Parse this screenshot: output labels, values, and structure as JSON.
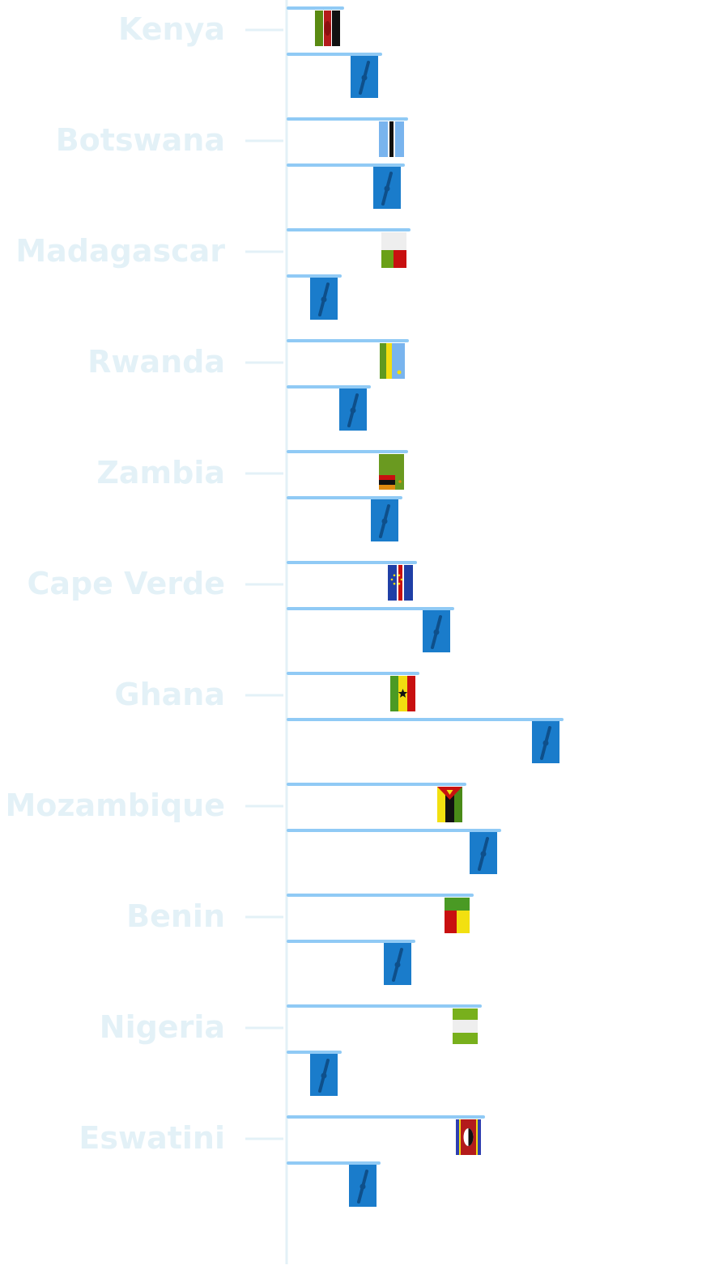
{
  "chart_data": {
    "type": "bar",
    "orientation": "horizontal",
    "categories": [
      "Kenya",
      "Botswana",
      "Madagascar",
      "Rwanda",
      "Zambia",
      "Cape Verde",
      "Ghana",
      "Mozambique",
      "Benin",
      "Nigeria",
      "Eswatini"
    ],
    "series": [
      {
        "marker": "country-flag",
        "values": [
          67,
          146,
          149,
          147,
          146,
          157,
          160,
          218,
          227,
          237,
          241
        ]
      },
      {
        "marker": "blue-tile",
        "values": [
          114,
          142,
          64,
          100,
          139,
          203,
          338,
          261,
          155,
          64,
          112
        ]
      }
    ],
    "xlim": [
      0,
      340
    ],
    "legend": "none",
    "grid": false,
    "title": "",
    "xlabel": "",
    "ylabel": ""
  },
  "colors": {
    "bar_line": "#90caf5",
    "axis": "#e3f1f7",
    "label": "#e3f1f7",
    "tile": "#1a7ccb",
    "tile_mark": "#0e4f8a"
  },
  "flags": [
    "kenya-flag",
    "botswana-flag",
    "madagascar-flag",
    "rwanda-flag",
    "zambia-flag",
    "cape-verde-flag",
    "ghana-flag",
    "mozambique-flag",
    "benin-flag",
    "nigeria-flag",
    "eswatini-flag"
  ]
}
